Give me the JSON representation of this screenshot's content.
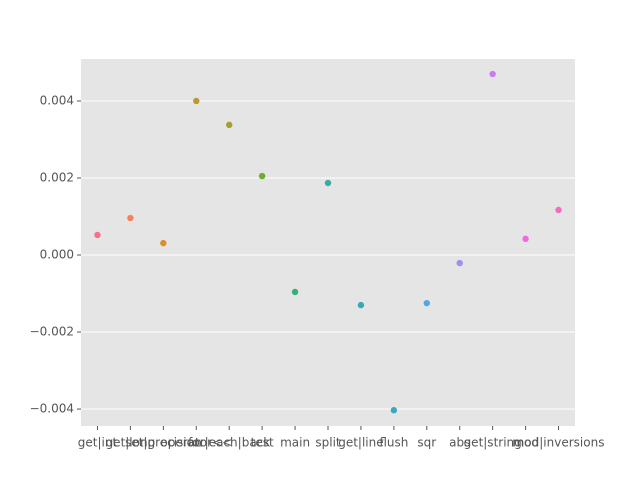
{
  "chart_data": {
    "type": "strip",
    "categories": [
      "get|int",
      "get|long",
      "set|precision",
      "operator<<",
      "for|each|back",
      "test",
      "main",
      "split",
      "get|line",
      "flush",
      "sqr",
      "abs",
      "get|string",
      "mod",
      "mod|inversions"
    ],
    "values": [
      0.00052,
      0.00096,
      0.00031,
      0.004,
      0.00338,
      0.00205,
      -0.00096,
      0.00187,
      -0.0013,
      -0.00403,
      -0.00125,
      -0.00021,
      0.0047,
      0.00042,
      0.00117
    ],
    "colors": [
      "#f77189",
      "#f5815a",
      "#d8902f",
      "#bb9832",
      "#a2a032",
      "#6bad32",
      "#33b07a",
      "#35aea0",
      "#37abb4",
      "#39a7c8",
      "#50a8e9",
      "#a08ef4",
      "#cc7af4",
      "#f466e0",
      "#f66bba"
    ],
    "ylim": [
      -0.00444,
      0.00509
    ],
    "yticks": [
      {
        "value": -0.004,
        "label": "−0.004"
      },
      {
        "value": -0.002,
        "label": "−0.002"
      },
      {
        "value": 0,
        "label": "0.000"
      },
      0.002,
      0.004
    ],
    "grid": true
  }
}
